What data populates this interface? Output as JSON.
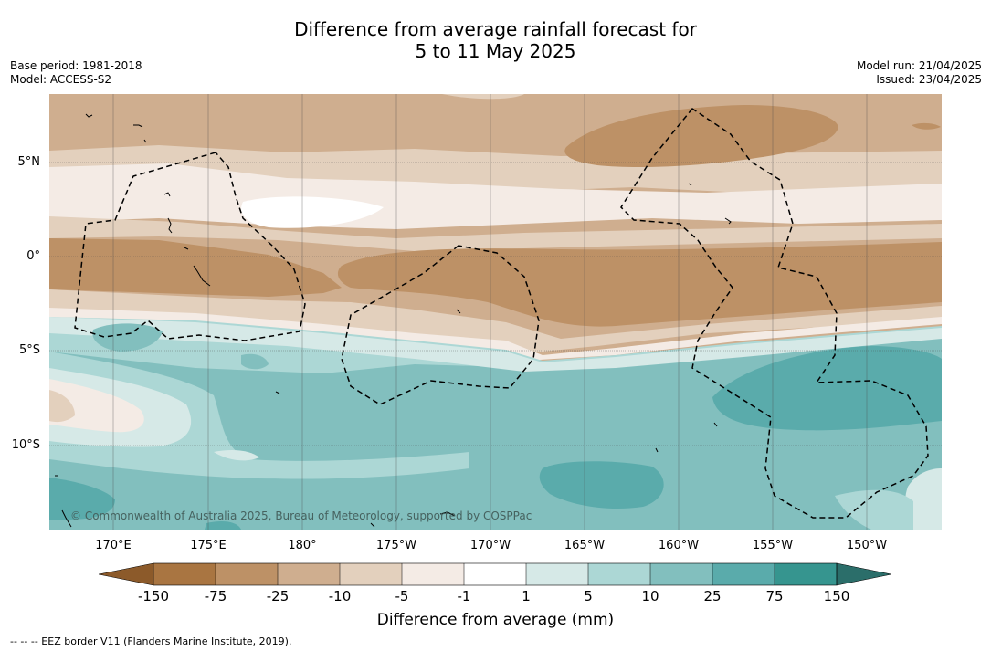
{
  "title": {
    "line1": "Difference from average rainfall forecast for",
    "line2": "5 to 11 May 2025"
  },
  "meta": {
    "base_period": "Base period: 1981-2018",
    "model": "Model: ACCESS-S2",
    "model_run": "Model run: 21/04/2025",
    "issued": "Issued: 23/04/2025"
  },
  "axes": {
    "lat_labels": [
      "5°N",
      "0°",
      "5°S",
      "10°S"
    ],
    "lon_labels": [
      "170°E",
      "175°E",
      "180°",
      "175°W",
      "170°W",
      "165°W",
      "160°W",
      "155°W",
      "150°W"
    ]
  },
  "copyright": "© Commonwealth of Australia 2025, Bureau of Meteorology, supported by COSPPac",
  "colorbar": {
    "ticks": [
      "-150",
      "-75",
      "-25",
      "-10",
      "-5",
      "-1",
      "1",
      "5",
      "10",
      "25",
      "75",
      "150"
    ],
    "colors": [
      "#8c5a2a",
      "#a97541",
      "#bd9166",
      "#cfae8f",
      "#e3d0bd",
      "#f4ebe5",
      "#ffffff",
      "#d6e9e7",
      "#acd7d5",
      "#82bfbe",
      "#5aabab",
      "#36958f",
      "#2b6e6a"
    ],
    "label": "Difference from average (mm)"
  },
  "footnote": "--  --  -- EEZ border V11 (Flanders Marine Institute, 2019)."
}
